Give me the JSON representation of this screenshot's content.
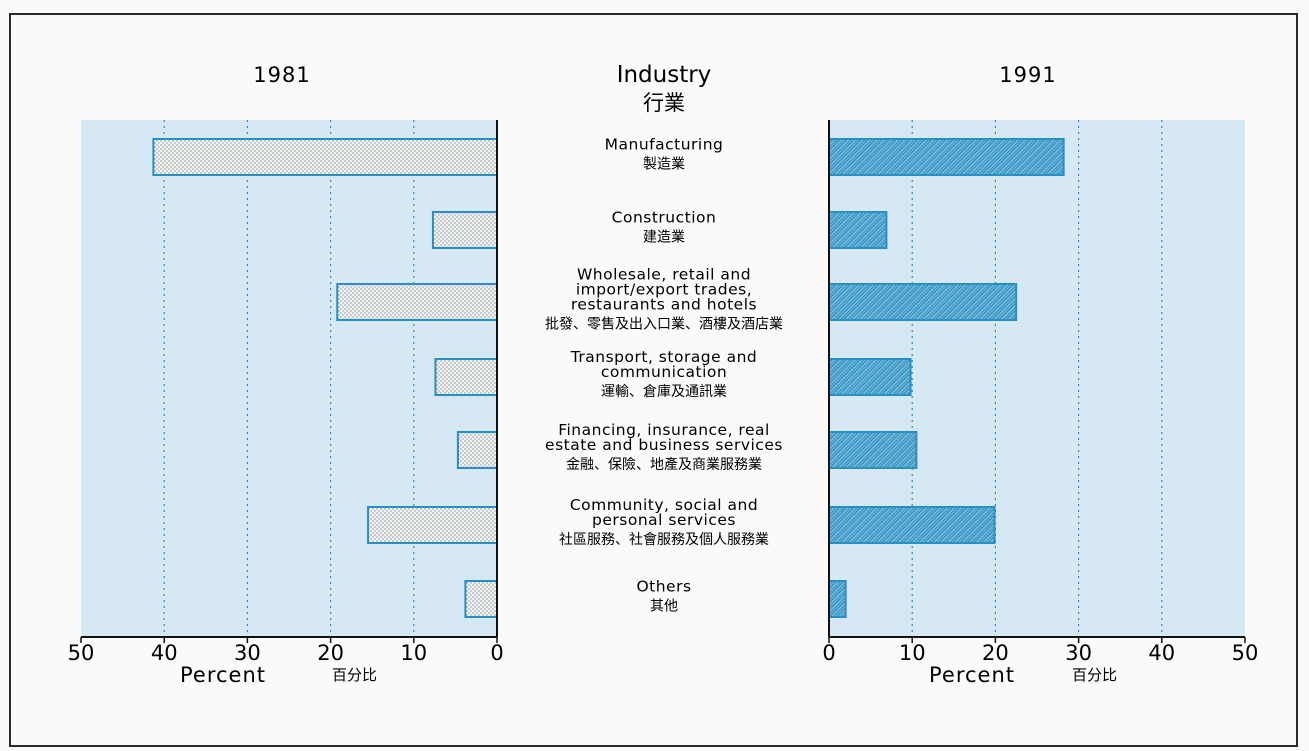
{
  "chart_data": {
    "type": "bar",
    "orientation": "horizontal-butterfly",
    "title": "Industry",
    "title_cn": "行業",
    "categories": [
      {
        "en": [
          "Manufacturing"
        ],
        "cn": "製造業"
      },
      {
        "en": [
          "Construction"
        ],
        "cn": "建造業"
      },
      {
        "en": [
          "Wholesale, retail and",
          "import/export trades,",
          "restaurants and hotels"
        ],
        "cn": "批發、零售及出入口業、酒樓及酒店業"
      },
      {
        "en": [
          "Transport, storage and",
          "communication"
        ],
        "cn": "運輸、倉庫及通訊業"
      },
      {
        "en": [
          "Financing, insurance, real",
          "estate and business services"
        ],
        "cn": "金融、保險、地產及商業服務業"
      },
      {
        "en": [
          "Community, social and",
          "personal services"
        ],
        "cn": "社區服務、社會服務及個人服務業"
      },
      {
        "en": [
          "Others"
        ],
        "cn": "其他"
      }
    ],
    "series": [
      {
        "name": "1981",
        "values": [
          41.3,
          7.7,
          19.2,
          7.4,
          4.7,
          15.5,
          3.8
        ]
      },
      {
        "name": "1991",
        "values": [
          28.2,
          6.9,
          22.5,
          9.8,
          10.5,
          19.9,
          2.0
        ]
      }
    ],
    "xlim": [
      0,
      50
    ],
    "ticks": [
      "0",
      "10",
      "20",
      "30",
      "40",
      "50"
    ],
    "xlabel": "Percent",
    "xlabel_cn": "百分比",
    "grid": "dotted vertical lines at 10, 20, 30, 40"
  },
  "colors": {
    "panel_bg": "#d6e8f4",
    "bar_1981_fill": "#eef0f1",
    "bar_1991_fill": "#5fb0d6",
    "bar_stroke": "#2590c4",
    "grid": "#2590c4",
    "axis": "#111111"
  }
}
